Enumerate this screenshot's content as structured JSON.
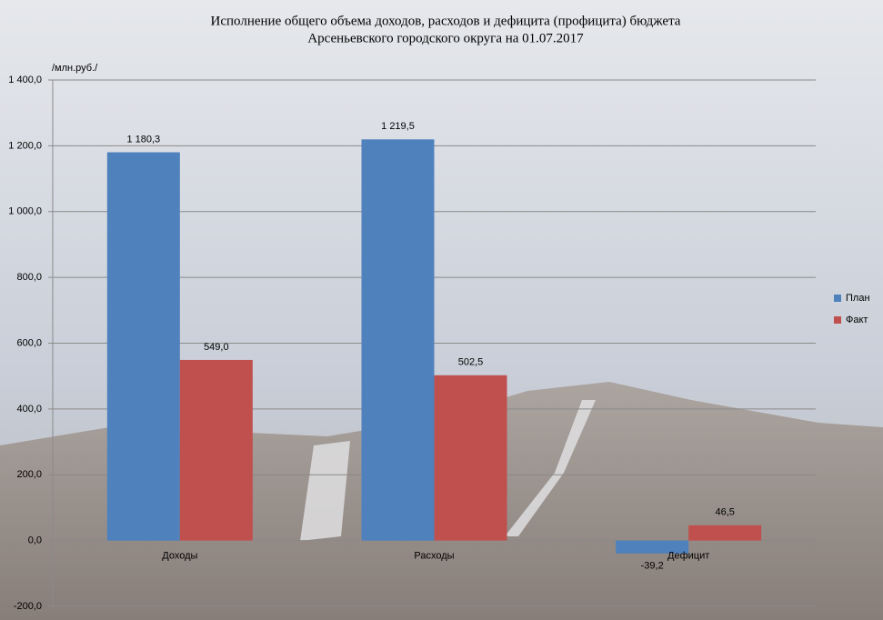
{
  "chart_data": {
    "type": "bar",
    "title": [
      "Исполнение общего объема доходов, расходов и дефицита (профицита) бюджета",
      "Арсеньевского городского округа на 01.07.2017"
    ],
    "y_axis_label": "/млн.руб./",
    "categories": [
      "Доходы",
      "Расходы",
      "Дефицит"
    ],
    "series": [
      {
        "name": "План",
        "color": "#4f81bd",
        "values": [
          1180.3,
          1219.5,
          -39.2
        ],
        "value_labels": [
          "1 180,3",
          "1 219,5",
          "-39,2"
        ]
      },
      {
        "name": "Факт",
        "color": "#c0504d",
        "values": [
          549.0,
          502.5,
          46.5
        ],
        "value_labels": [
          "549,0",
          "502,5",
          "46,5"
        ]
      }
    ],
    "ylim": [
      -200,
      1400
    ],
    "yticks": [
      {
        "value": -200,
        "label": "-200,0"
      },
      {
        "value": 0,
        "label": "0,0"
      },
      {
        "value": 200,
        "label": "200,0"
      },
      {
        "value": 400,
        "label": "400,0"
      },
      {
        "value": 600,
        "label": "600,0"
      },
      {
        "value": 800,
        "label": "800,0"
      },
      {
        "value": 1000,
        "label": "1 000,0"
      },
      {
        "value": 1200,
        "label": "1 200,0"
      },
      {
        "value": 1400,
        "label": "1 400,0"
      }
    ],
    "grid": true,
    "legend": "right"
  }
}
